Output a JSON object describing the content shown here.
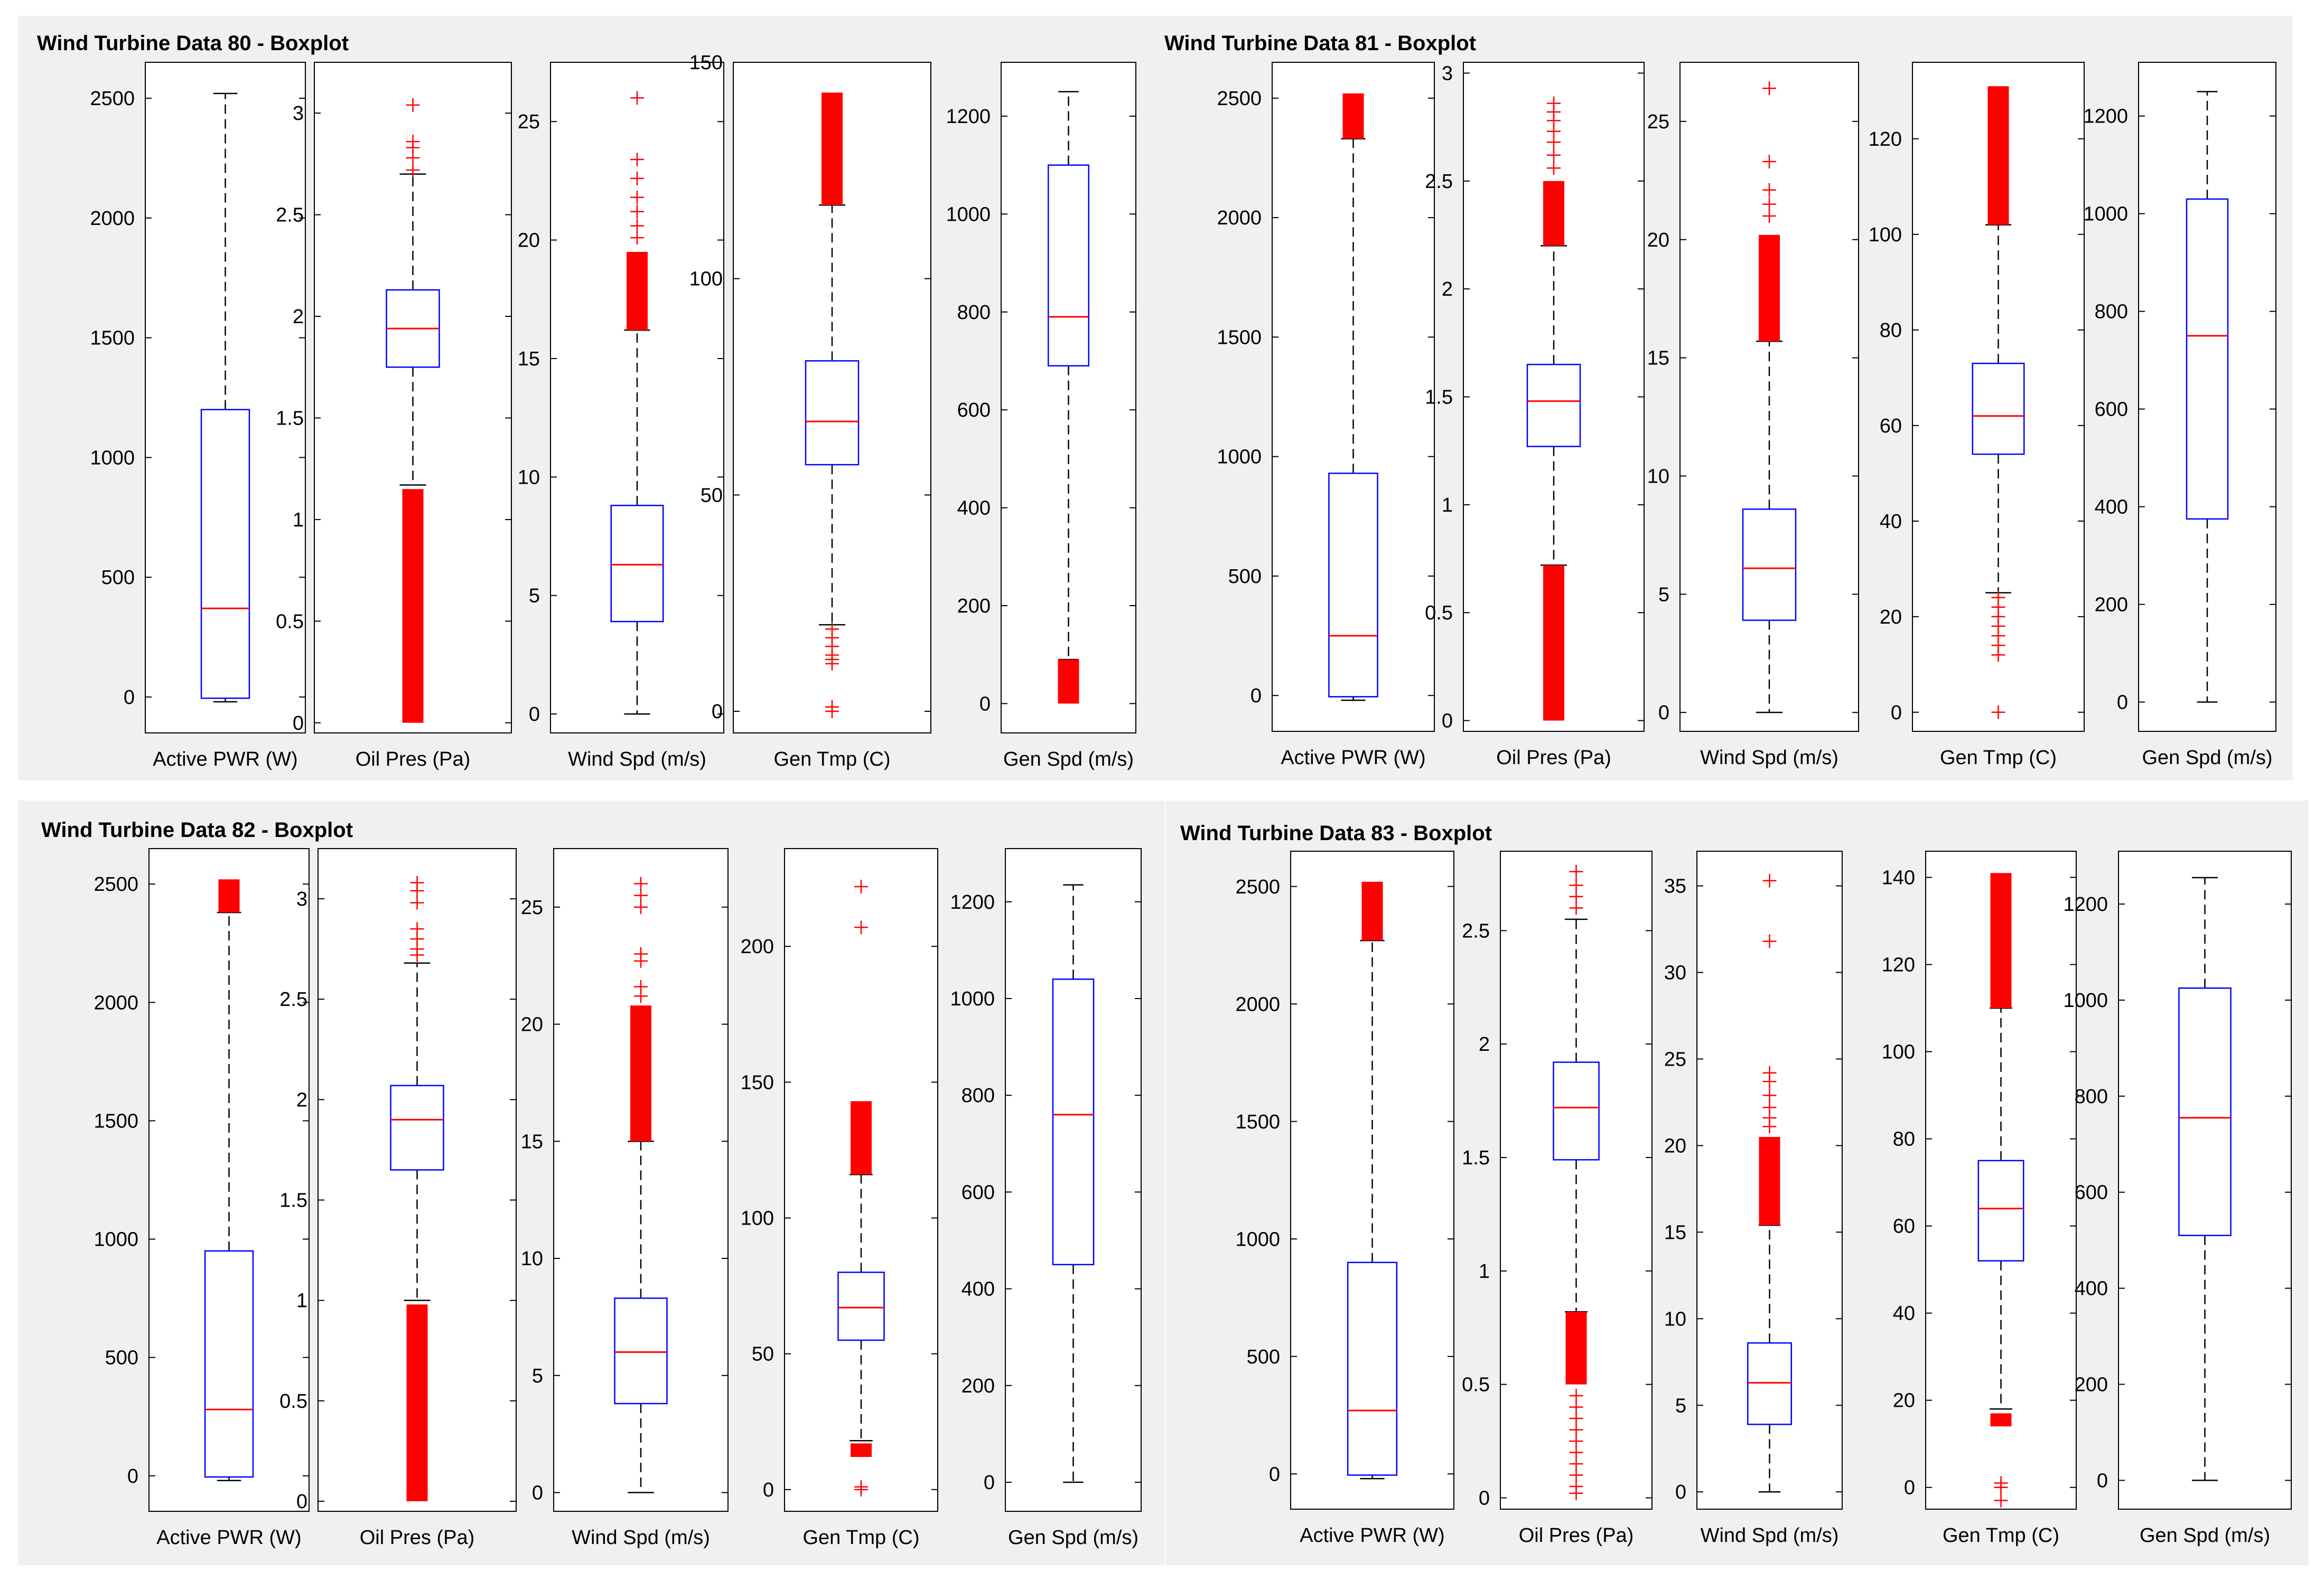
{
  "colors": {
    "panel_bg": "#f0f0f0",
    "axes_bg": "#ffffff",
    "box": "#0000ff",
    "median": "#ff0000",
    "outlier": "#ff0000",
    "whisker": "#000000"
  },
  "chart_data": [
    {
      "type": "boxplot",
      "title": "Wind Turbine Data 80 - Boxplot",
      "subplots": [
        {
          "xlabel": "Active PWR (W)",
          "ylim": [
            -150,
            2650
          ],
          "ticks": [
            0,
            500,
            1000,
            1500,
            2000,
            2500
          ],
          "box": {
            "q1": -5,
            "median": 370,
            "q3": 1200,
            "whisker_low": -20,
            "whisker_high": 2520
          },
          "outlier_bands": [],
          "outliers": []
        },
        {
          "xlabel": "Oil Pres (Pa)",
          "ylim": [
            -0.05,
            3.25
          ],
          "ticks": [
            0,
            0.5,
            1,
            1.5,
            2,
            2.5,
            3
          ],
          "box": {
            "q1": 1.75,
            "median": 1.94,
            "q3": 2.13,
            "whisker_low": 1.17,
            "whisker_high": 2.7
          },
          "outlier_bands": [
            [
              0.0,
              1.15
            ]
          ],
          "outliers": [
            3.04,
            2.86,
            2.83,
            2.78,
            2.72,
            0.05,
            0.12,
            0.2,
            0.28,
            0.36,
            0.45,
            0.55,
            0.7,
            0.85,
            1.0
          ]
        },
        {
          "xlabel": "Wind Spd (m/s)",
          "ylim": [
            -0.8,
            27.5
          ],
          "ticks": [
            0,
            5,
            10,
            15,
            20,
            25
          ],
          "box": {
            "q1": 3.9,
            "median": 6.3,
            "q3": 8.8,
            "whisker_low": 0,
            "whisker_high": 16.2
          },
          "outlier_bands": [
            [
              16.2,
              19.5
            ]
          ],
          "outliers": [
            26,
            23.4,
            22.6,
            21.8,
            21.2,
            20.6,
            20.1
          ]
        },
        {
          "xlabel": "Gen Tmp (C)",
          "ylim": [
            -5,
            150
          ],
          "ticks": [
            0,
            50,
            100,
            150
          ],
          "box": {
            "q1": 57,
            "median": 67,
            "q3": 81,
            "whisker_low": 20,
            "whisker_high": 117
          },
          "outlier_bands": [
            [
              117,
              143
            ]
          ],
          "outliers": [
            19,
            17,
            15,
            13,
            12,
            11,
            1,
            0
          ]
        },
        {
          "xlabel": "Gen Spd (m/s)",
          "ylim": [
            -60,
            1310
          ],
          "ticks": [
            0,
            200,
            400,
            600,
            800,
            1000,
            1200
          ],
          "box": {
            "q1": 690,
            "median": 790,
            "q3": 1100,
            "whisker_low": 90,
            "whisker_high": 1250
          },
          "outlier_bands": [
            [
              0,
              90
            ]
          ],
          "outliers": []
        }
      ]
    },
    {
      "type": "boxplot",
      "title": "Wind Turbine Data 81 - Boxplot",
      "subplots": [
        {
          "xlabel": "Active PWR (W)",
          "ylim": [
            -150,
            2650
          ],
          "ticks": [
            0,
            500,
            1000,
            1500,
            2000,
            2500
          ],
          "box": {
            "q1": -5,
            "median": 250,
            "q3": 930,
            "whisker_low": -20,
            "whisker_high": 2330
          },
          "outlier_bands": [
            [
              2330,
              2520
            ]
          ],
          "outliers": []
        },
        {
          "xlabel": "Oil Pres (Pa)",
          "ylim": [
            -0.05,
            3.05
          ],
          "ticks": [
            0,
            0.5,
            1,
            1.5,
            2,
            2.5,
            3
          ],
          "box": {
            "q1": 1.27,
            "median": 1.48,
            "q3": 1.65,
            "whisker_low": 0.72,
            "whisker_high": 2.2
          },
          "outlier_bands": [
            [
              0.0,
              0.72
            ],
            [
              2.2,
              2.5
            ]
          ],
          "outliers": [
            2.86,
            2.82,
            2.78,
            2.73,
            2.68,
            2.62,
            2.56
          ]
        },
        {
          "xlabel": "Wind Spd (m/s)",
          "ylim": [
            -0.8,
            27.5
          ],
          "ticks": [
            0,
            5,
            10,
            15,
            20,
            25
          ],
          "box": {
            "q1": 3.9,
            "median": 6.1,
            "q3": 8.6,
            "whisker_low": 0,
            "whisker_high": 15.7
          },
          "outlier_bands": [
            [
              15.7,
              20.2
            ]
          ],
          "outliers": [
            26.4,
            23.3,
            22.1,
            21.5,
            21.0
          ]
        },
        {
          "xlabel": "Gen Tmp (C)",
          "ylim": [
            -4,
            136
          ],
          "ticks": [
            0,
            20,
            40,
            60,
            80,
            100,
            120
          ],
          "box": {
            "q1": 54,
            "median": 62,
            "q3": 73,
            "whisker_low": 25,
            "whisker_high": 102
          },
          "outlier_bands": [
            [
              102,
              131
            ]
          ],
          "outliers": [
            24,
            22,
            20,
            18,
            16,
            14,
            12,
            0
          ]
        },
        {
          "xlabel": "Gen Spd (m/s)",
          "ylim": [
            -60,
            1310
          ],
          "ticks": [
            0,
            200,
            400,
            600,
            800,
            1000,
            1200
          ],
          "box": {
            "q1": 375,
            "median": 750,
            "q3": 1030,
            "whisker_low": 0,
            "whisker_high": 1250
          },
          "outlier_bands": [],
          "outliers": []
        }
      ]
    },
    {
      "type": "boxplot",
      "title": "Wind Turbine Data 82 - Boxplot",
      "subplots": [
        {
          "xlabel": "Active PWR (W)",
          "ylim": [
            -150,
            2650
          ],
          "ticks": [
            0,
            500,
            1000,
            1500,
            2000,
            2500
          ],
          "box": {
            "q1": -5,
            "median": 280,
            "q3": 950,
            "whisker_low": -20,
            "whisker_high": 2380
          },
          "outlier_bands": [
            [
              2380,
              2520
            ]
          ],
          "outliers": []
        },
        {
          "xlabel": "Oil Pres (Pa)",
          "ylim": [
            -0.05,
            3.25
          ],
          "ticks": [
            0,
            0.5,
            1,
            1.5,
            2,
            2.5,
            3
          ],
          "box": {
            "q1": 1.65,
            "median": 1.9,
            "q3": 2.07,
            "whisker_low": 1.0,
            "whisker_high": 2.68
          },
          "outlier_bands": [
            [
              0.0,
              0.98
            ]
          ],
          "outliers": [
            3.08,
            3.04,
            2.98,
            2.85,
            2.8,
            2.75,
            2.72
          ]
        },
        {
          "xlabel": "Wind Spd (m/s)",
          "ylim": [
            -0.8,
            27.5
          ],
          "ticks": [
            0,
            5,
            10,
            15,
            20,
            25
          ],
          "box": {
            "q1": 3.8,
            "median": 6.0,
            "q3": 8.3,
            "whisker_low": 0,
            "whisker_high": 15.0
          },
          "outlier_bands": [
            [
              15.0,
              20.8
            ]
          ],
          "outliers": [
            26.0,
            25.5,
            25.0,
            23.0,
            22.7,
            21.6,
            21.2
          ]
        },
        {
          "xlabel": "Gen Tmp (C)",
          "ylim": [
            -8,
            236
          ],
          "ticks": [
            0,
            50,
            100,
            150,
            200
          ],
          "box": {
            "q1": 55,
            "median": 67,
            "q3": 80,
            "whisker_low": 18,
            "whisker_high": 116
          },
          "outlier_bands": [
            [
              116,
              143
            ],
            [
              12,
              17
            ]
          ],
          "outliers": [
            222,
            207,
            0,
            1
          ]
        },
        {
          "xlabel": "Gen Spd (m/s)",
          "ylim": [
            -60,
            1310
          ],
          "ticks": [
            0,
            200,
            400,
            600,
            800,
            1000,
            1200
          ],
          "box": {
            "q1": 450,
            "median": 760,
            "q3": 1040,
            "whisker_low": 0,
            "whisker_high": 1235
          },
          "outlier_bands": [],
          "outliers": []
        }
      ]
    },
    {
      "type": "boxplot",
      "title": "Wind Turbine Data 83 - Boxplot",
      "subplots": [
        {
          "xlabel": "Active PWR (W)",
          "ylim": [
            -150,
            2650
          ],
          "ticks": [
            0,
            500,
            1000,
            1500,
            2000,
            2500
          ],
          "box": {
            "q1": -5,
            "median": 270,
            "q3": 900,
            "whisker_low": -20,
            "whisker_high": 2270
          },
          "outlier_bands": [
            [
              2270,
              2520
            ]
          ],
          "outliers": []
        },
        {
          "xlabel": "Oil Pres (Pa)",
          "ylim": [
            -0.05,
            2.85
          ],
          "ticks": [
            0,
            0.5,
            1,
            1.5,
            2,
            2.5
          ],
          "box": {
            "q1": 1.49,
            "median": 1.72,
            "q3": 1.92,
            "whisker_low": 0.82,
            "whisker_high": 2.55
          },
          "outlier_bands": [
            [
              0.5,
              0.82
            ]
          ],
          "outliers": [
            2.76,
            2.7,
            2.65,
            2.6,
            0.02,
            0.05,
            0.1,
            0.15,
            0.2,
            0.25,
            0.3,
            0.35,
            0.4,
            0.45
          ]
        },
        {
          "xlabel": "Wind Spd (m/s)",
          "ylim": [
            -1,
            37
          ],
          "ticks": [
            0,
            5,
            10,
            15,
            20,
            25,
            30,
            35
          ],
          "box": {
            "q1": 3.9,
            "median": 6.3,
            "q3": 8.6,
            "whisker_low": 0,
            "whisker_high": 15.4
          },
          "outlier_bands": [
            [
              15.4,
              20.5
            ]
          ],
          "outliers": [
            35.3,
            31.8,
            24.2,
            23.7,
            22.9,
            22.2,
            21.6,
            21.1
          ]
        },
        {
          "xlabel": "Gen Tmp (C)",
          "ylim": [
            -5,
            146
          ],
          "ticks": [
            0,
            20,
            40,
            60,
            80,
            100,
            120,
            140
          ],
          "box": {
            "q1": 52,
            "median": 64,
            "q3": 75,
            "whisker_low": 18,
            "whisker_high": 110
          },
          "outlier_bands": [
            [
              110,
              141
            ],
            [
              14,
              17
            ]
          ],
          "outliers": [
            1,
            0,
            -3
          ]
        },
        {
          "xlabel": "Gen Spd (m/s)",
          "ylim": [
            -60,
            1310
          ],
          "ticks": [
            0,
            200,
            400,
            600,
            800,
            1000,
            1200
          ],
          "box": {
            "q1": 510,
            "median": 755,
            "q3": 1025,
            "whisker_low": 0,
            "whisker_high": 1255
          },
          "outlier_bands": [],
          "outliers": []
        }
      ]
    }
  ]
}
